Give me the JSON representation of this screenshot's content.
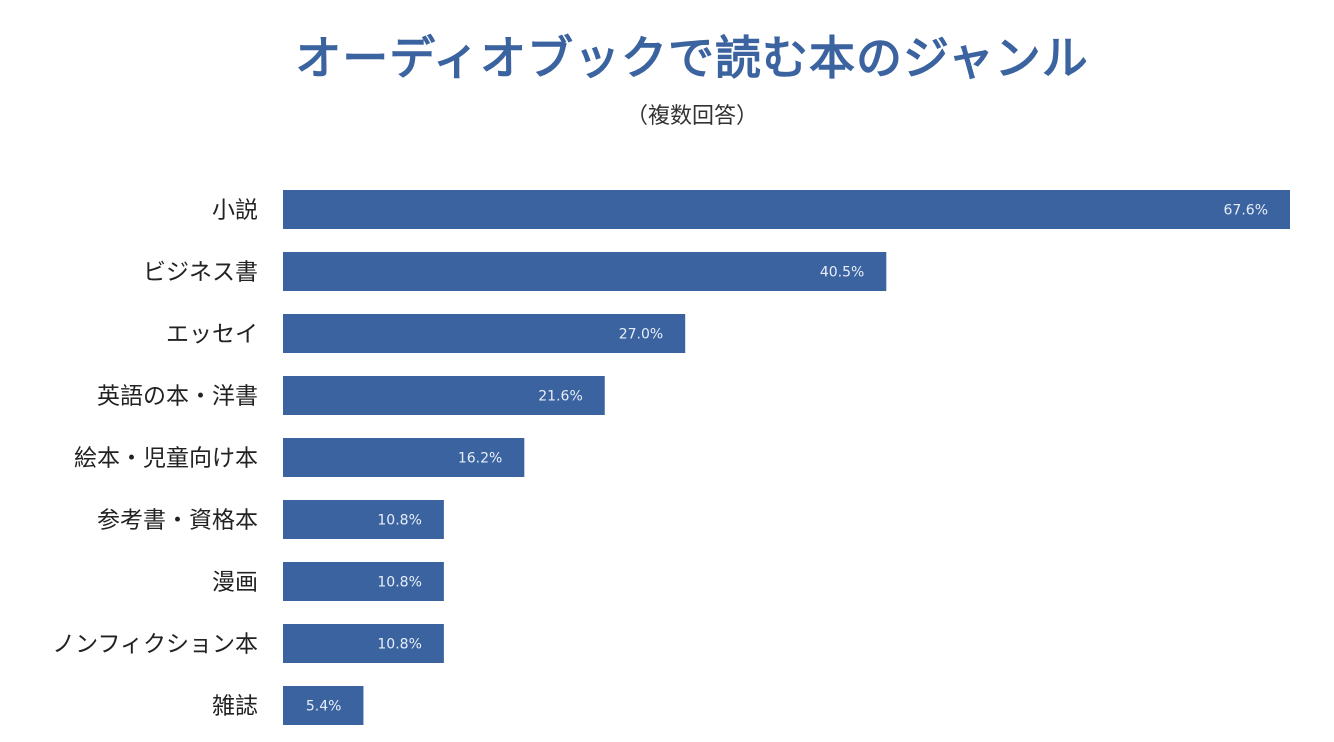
{
  "chart_data": {
    "type": "bar",
    "orientation": "horizontal",
    "title": "オーディオブックで読む本のジャンル",
    "subtitle": "（複数回答）",
    "categories": [
      "小説",
      "ビジネス書",
      "エッセイ",
      "英語の本・洋書",
      "絵本・児童向け本",
      "参考書・資格本",
      "漫画",
      "ノンフィクション本",
      "雑誌"
    ],
    "values": [
      67.6,
      40.5,
      27.0,
      21.6,
      16.2,
      10.8,
      10.8,
      10.8,
      5.4
    ],
    "value_labels": [
      "67.6%",
      "40.5%",
      "27.0%",
      "21.6%",
      "16.2%",
      "10.8%",
      "10.8%",
      "10.8%",
      "5.4%"
    ],
    "unit": "%",
    "xlim": [
      0,
      67.6
    ],
    "grid": false,
    "legend": "none",
    "bar_color": "#3b63a0",
    "title_color": "#3b63a0"
  }
}
